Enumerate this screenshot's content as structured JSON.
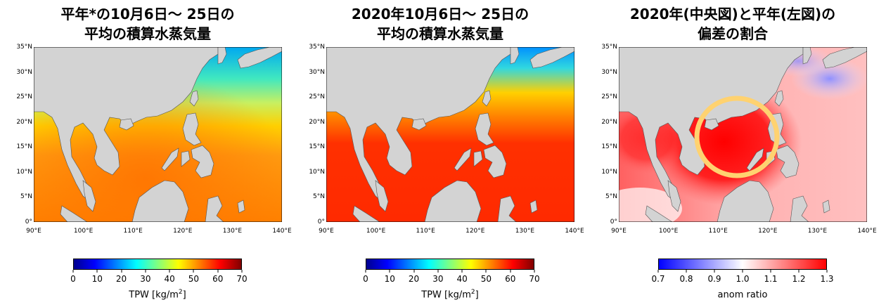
{
  "panels": [
    {
      "title_lines": [
        "平年*の10月6日〜 25日の",
        "平均の積算水蒸気量"
      ],
      "colorbar": {
        "ticks": [
          "0",
          "10",
          "20",
          "30",
          "40",
          "50",
          "60",
          "70"
        ],
        "label": "TPW [kg/m",
        "label_sup": "2",
        "label_end": "]",
        "colors": [
          "#00008f",
          "#0000ff",
          "#0080ff",
          "#00ffff",
          "#80ff80",
          "#ffff00",
          "#ff8000",
          "#ff0000",
          "#800000"
        ]
      }
    },
    {
      "title_lines": [
        "2020年10月6日〜 25日の",
        "平均の積算水蒸気量"
      ],
      "colorbar": {
        "ticks": [
          "0",
          "10",
          "20",
          "30",
          "40",
          "50",
          "60",
          "70"
        ],
        "label": "TPW [kg/m",
        "label_sup": "2",
        "label_end": "]",
        "colors": [
          "#00008f",
          "#0000ff",
          "#0080ff",
          "#00ffff",
          "#80ff80",
          "#ffff00",
          "#ff8000",
          "#ff0000",
          "#800000"
        ]
      }
    },
    {
      "title_lines": [
        "2020年(中央図)と平年(左図)の",
        "偏差の割合"
      ],
      "colorbar": {
        "ticks": [
          "0.7",
          "0.8",
          "0.9",
          "1.0",
          "1.1",
          "1.2",
          "1.3"
        ],
        "label": "anom ratio",
        "label_sup": "",
        "label_end": "",
        "colors": [
          "#0000ff",
          "#8080ff",
          "#ffffff",
          "#ff8080",
          "#ff0000"
        ]
      }
    }
  ],
  "axes": {
    "lat_ticks": [
      "0°",
      "5°N",
      "10°N",
      "15°N",
      "20°N",
      "25°N",
      "30°N",
      "35°N"
    ],
    "lon_ticks": [
      "90°E",
      "100°E",
      "110°E",
      "120°E",
      "130°E",
      "140°E"
    ]
  },
  "colors": {
    "land": "#d3d3d3",
    "highlight_circle": "#ffd270"
  }
}
